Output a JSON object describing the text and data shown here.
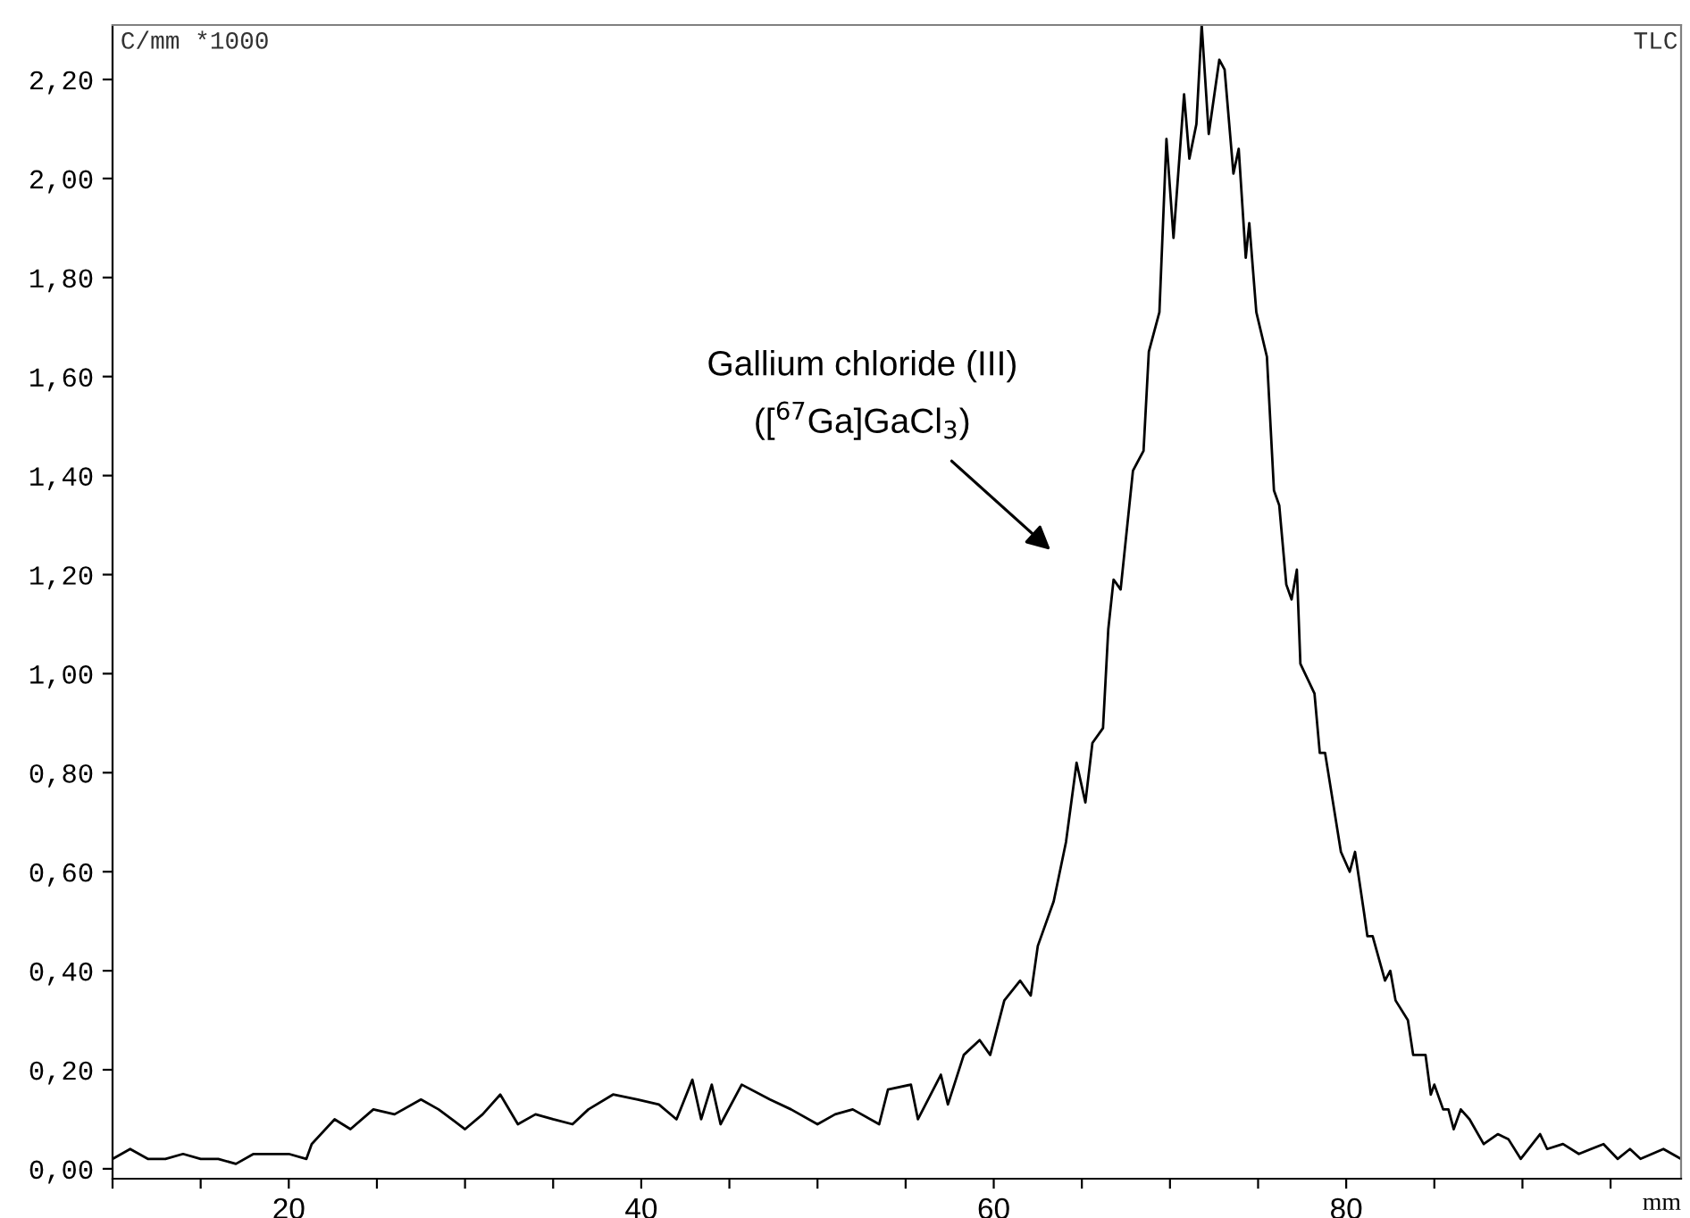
{
  "chart_data": {
    "type": "line",
    "ylabel": "C/mm *1000",
    "xlabel": "mm",
    "annotations": [
      "Gallium chloride (III)\n([$^{67}$Ga]GaCl$_{3}$)",
      "TLC"
    ],
    "xlim": [
      10,
      99
    ],
    "ylim": [
      -0.02,
      2.31
    ],
    "xticks": [
      {
        "value": 10,
        "label": null
      },
      {
        "value": 15,
        "label": null
      },
      20,
      {
        "value": 25,
        "label": null
      },
      {
        "value": 30,
        "label": null
      },
      {
        "value": 35,
        "label": null
      },
      40,
      {
        "value": 45,
        "label": null
      },
      {
        "value": 50,
        "label": null
      },
      {
        "value": 55,
        "label": null
      },
      60,
      {
        "value": 65,
        "label": null
      },
      {
        "value": 70,
        "label": null
      },
      {
        "value": 75,
        "label": null
      },
      80,
      {
        "value": 85,
        "label": null
      },
      {
        "value": 90,
        "label": null
      },
      {
        "value": 95,
        "label": null
      }
    ],
    "yticks": [
      {
        "value": 0,
        "label": "0,00"
      },
      {
        "value": 0.2,
        "label": "0,20"
      },
      {
        "value": 0.4,
        "label": "0,40"
      },
      {
        "value": 0.6,
        "label": "0,60"
      },
      {
        "value": 0.8,
        "label": "0,80"
      },
      {
        "value": 1.0,
        "label": "1,00"
      },
      {
        "value": 1.2,
        "label": "1,20"
      },
      {
        "value": 1.4,
        "label": "1,40"
      },
      {
        "value": 1.6,
        "label": "1,60"
      },
      {
        "value": 1.8,
        "label": "1,80"
      },
      {
        "value": 2.0,
        "label": "2,00"
      },
      {
        "value": 2.2,
        "label": "2,20"
      }
    ],
    "grid": false,
    "legend": false,
    "marker": "none",
    "line_style": "solid",
    "series": [
      {
        "color": "#000000",
        "x": [
          10,
          11,
          12,
          13,
          14,
          15,
          16,
          17,
          18,
          19,
          20,
          21,
          21.3,
          22.6,
          23.5,
          24.8,
          26,
          27.5,
          28.5,
          30,
          31,
          32,
          33,
          34,
          35,
          36.1,
          37,
          38.4,
          39.8,
          41,
          42,
          42.9,
          43.4,
          44,
          44.5,
          45.7,
          47.3,
          48.5,
          50,
          51,
          52,
          53.5,
          54,
          55.3,
          55.7,
          57,
          57.4,
          58.3,
          59.2,
          59.8,
          60.6,
          61.5,
          62.1,
          62.5,
          63.4,
          64.1,
          64.7,
          65.2,
          65.6,
          66.2,
          66.5,
          66.8,
          67.2,
          67.9,
          68.5,
          68.8,
          69.4,
          69.8,
          70.2,
          70.8,
          71.1,
          71.5,
          71.8,
          72.2,
          72.8,
          73.1,
          73.6,
          73.9,
          74.3,
          74.5,
          74.9,
          75.5,
          75.9,
          76.2,
          76.6,
          76.9,
          77.2,
          77.4,
          78.2,
          78.5,
          78.8,
          79.7,
          80.2,
          80.5,
          81,
          81.2,
          81.5,
          82.2,
          82.5,
          82.8,
          83.5,
          83.8,
          84.5,
          84.8,
          85,
          85.5,
          85.8,
          86.1,
          86.5,
          87,
          87.8,
          88.6,
          89.2,
          89.9,
          91,
          91.4,
          92.3,
          93.2,
          94.6,
          95.4,
          96.1,
          96.7,
          98,
          99
        ],
        "values": [
          0.02,
          0.04,
          0.02,
          0.02,
          0.03,
          0.02,
          0.02,
          0.01,
          0.03,
          0.03,
          0.03,
          0.02,
          0.05,
          0.1,
          0.08,
          0.12,
          0.11,
          0.14,
          0.12,
          0.08,
          0.11,
          0.15,
          0.09,
          0.11,
          0.1,
          0.09,
          0.12,
          0.15,
          0.14,
          0.13,
          0.1,
          0.18,
          0.1,
          0.17,
          0.09,
          0.17,
          0.14,
          0.12,
          0.09,
          0.11,
          0.12,
          0.09,
          0.16,
          0.17,
          0.1,
          0.19,
          0.13,
          0.23,
          0.26,
          0.23,
          0.34,
          0.38,
          0.35,
          0.45,
          0.54,
          0.66,
          0.82,
          0.74,
          0.86,
          0.89,
          1.09,
          1.19,
          1.17,
          1.41,
          1.45,
          1.65,
          1.73,
          2.08,
          1.88,
          2.17,
          2.04,
          2.11,
          2.31,
          2.09,
          2.24,
          2.22,
          2.01,
          2.06,
          1.84,
          1.91,
          1.73,
          1.64,
          1.37,
          1.34,
          1.18,
          1.15,
          1.21,
          1.02,
          0.96,
          0.84,
          0.84,
          0.64,
          0.6,
          0.64,
          0.52,
          0.47,
          0.47,
          0.38,
          0.4,
          0.34,
          0.3,
          0.23,
          0.23,
          0.15,
          0.17,
          0.12,
          0.12,
          0.08,
          0.12,
          0.1,
          0.05,
          0.07,
          0.06,
          0.02,
          0.07,
          0.04,
          0.05,
          0.03,
          0.05,
          0.02,
          0.04,
          0.02,
          0.04,
          0.02
        ]
      }
    ]
  }
}
